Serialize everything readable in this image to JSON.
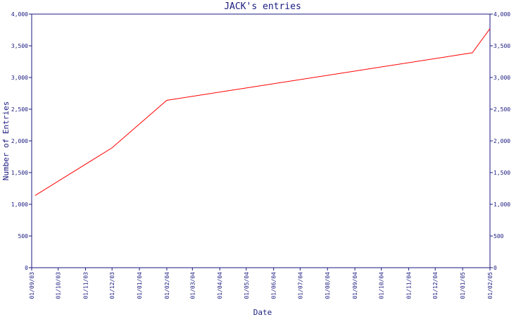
{
  "chart_data": {
    "type": "line",
    "title": "JACK's entries",
    "xlabel": "Date",
    "ylabel": "Number of Entries",
    "ylim": [
      0,
      4000
    ],
    "y_ticks": [
      "0",
      "500",
      "1,000",
      "1,500",
      "2,000",
      "2,500",
      "3,000",
      "3,500",
      "4,000"
    ],
    "x_ticks": [
      "01/09/03",
      "01/10/03",
      "01/11/03",
      "01/12/03",
      "01/01/04",
      "01/02/04",
      "01/03/04",
      "01/04/04",
      "01/05/04",
      "01/06/04",
      "01/07/04",
      "01/08/04",
      "01/09/04",
      "01/10/04",
      "01/11/04",
      "01/12/04",
      "01/01/05",
      "01/02/05"
    ],
    "x_range": [
      "2003-09-01",
      "2005-02-01"
    ],
    "grid": false,
    "series": [
      {
        "color": "#ff0000",
        "points": [
          {
            "x": "2003-09-05",
            "y": 1140
          },
          {
            "x": "2003-12-01",
            "y": 1890
          },
          {
            "x": "2004-02-01",
            "y": 2640
          },
          {
            "x": "2005-01-12",
            "y": 3390
          },
          {
            "x": "2005-02-01",
            "y": 3770
          }
        ]
      }
    ],
    "colors": {
      "axis": "#1a1a80",
      "text": "#1a1a80"
    }
  }
}
